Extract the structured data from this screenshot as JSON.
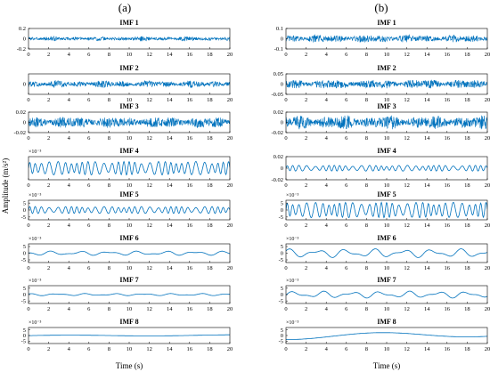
{
  "panel_labels": [
    "(a)",
    "(b)"
  ],
  "ylabel": "Amplitude (m/s²)",
  "xlabel": "Time (s)",
  "colors": {
    "signal": "#0072BD",
    "axes": "#000000"
  },
  "chart_data": [
    {
      "type": "line",
      "panel": "(a)",
      "xlabel": "Time (s)",
      "ylabel": "Amplitude (m/s²)",
      "xlim": [
        0,
        20
      ],
      "xticks": [
        0,
        2,
        4,
        6,
        8,
        10,
        12,
        14,
        16,
        18,
        20
      ],
      "grid": false,
      "subplots": [
        {
          "title": "IMF 1",
          "ylim": [
            -0.2,
            0.2
          ],
          "yticks": [
            "-0.2",
            "0",
            "0.2"
          ],
          "exponent": "",
          "amplitude": 0.04,
          "wave": "noise"
        },
        {
          "title": "IMF 2",
          "ylim": [
            -0.05,
            0.05
          ],
          "yticks": [
            "0"
          ],
          "exponent": "",
          "amplitude": 0.015,
          "wave": "noise"
        },
        {
          "title": "IMF 3",
          "ylim": [
            -0.02,
            0.02
          ],
          "yticks": [
            "-0.02",
            "0",
            "0.02"
          ],
          "exponent": "",
          "amplitude": 0.01,
          "wave": "noise"
        },
        {
          "title": "IMF 4",
          "ylim": [
            -12,
            12
          ],
          "yticks": [],
          "exponent": "×10⁻³",
          "amplitude": 7,
          "wave": "oscillation"
        },
        {
          "title": "IMF 5",
          "ylim": [
            -7,
            7
          ],
          "yticks": [
            "5",
            "0",
            "-5"
          ],
          "exponent": "×10⁻³",
          "amplitude": 2.5,
          "wave": "oscillation"
        },
        {
          "title": "IMF 6",
          "ylim": [
            -7,
            7
          ],
          "yticks": [
            "5",
            "0",
            "-5"
          ],
          "exponent": "×10⁻³",
          "amplitude": 1.5,
          "wave": "slow"
        },
        {
          "title": "IMF 7",
          "ylim": [
            -7,
            7
          ],
          "yticks": [
            "5",
            "0",
            "-5"
          ],
          "exponent": "×10⁻³",
          "amplitude": 0.8,
          "wave": "slow"
        },
        {
          "title": "IMF 8",
          "ylim": [
            -7,
            7
          ],
          "yticks": [
            "5",
            "0",
            "-5"
          ],
          "exponent": "×10⁻³",
          "amplitude": 0.8,
          "wave": "trend"
        }
      ]
    },
    {
      "type": "line",
      "panel": "(b)",
      "xlabel": "Time (s)",
      "xlim": [
        0,
        20
      ],
      "xticks": [
        0,
        2,
        4,
        6,
        8,
        10,
        12,
        14,
        16,
        18,
        20
      ],
      "grid": false,
      "subplots": [
        {
          "title": "IMF 1",
          "ylim": [
            -0.1,
            0.1
          ],
          "yticks": [
            "0.1",
            "0",
            "-0.1"
          ],
          "exponent": "",
          "amplitude": 0.035,
          "wave": "noise"
        },
        {
          "title": "IMF 2",
          "ylim": [
            -0.05,
            0.05
          ],
          "yticks": [
            "0.05",
            "0",
            "-0.05"
          ],
          "exponent": "",
          "amplitude": 0.02,
          "wave": "noise"
        },
        {
          "title": "IMF 3",
          "ylim": [
            -0.02,
            0.02
          ],
          "yticks": [
            "0.02",
            "0",
            "-0.02"
          ],
          "exponent": "",
          "amplitude": 0.012,
          "wave": "noise"
        },
        {
          "title": "IMF 4",
          "ylim": [
            -0.02,
            0.02
          ],
          "yticks": [
            "0.02",
            "0",
            "-0.02"
          ],
          "exponent": "",
          "amplitude": 0.005,
          "wave": "oscillation"
        },
        {
          "title": "IMF 5",
          "ylim": [
            -7,
            7
          ],
          "yticks": [
            "5",
            "0",
            "-5"
          ],
          "exponent": "×10⁻³",
          "amplitude": 5.5,
          "wave": "oscillation"
        },
        {
          "title": "IMF 6",
          "ylim": [
            -7,
            7
          ],
          "yticks": [
            "5",
            "0",
            "-5"
          ],
          "exponent": "×10⁻³",
          "amplitude": 3,
          "wave": "slow"
        },
        {
          "title": "IMF 7",
          "ylim": [
            -7,
            7
          ],
          "yticks": [
            "5",
            "0",
            "-5"
          ],
          "exponent": "×10⁻³",
          "amplitude": 2.5,
          "wave": "slow"
        },
        {
          "title": "IMF 8",
          "ylim": [
            -7,
            7
          ],
          "yticks": [
            "5",
            "0",
            "-5"
          ],
          "exponent": "×10⁻³",
          "amplitude": 4,
          "wave": "trend"
        }
      ]
    }
  ]
}
